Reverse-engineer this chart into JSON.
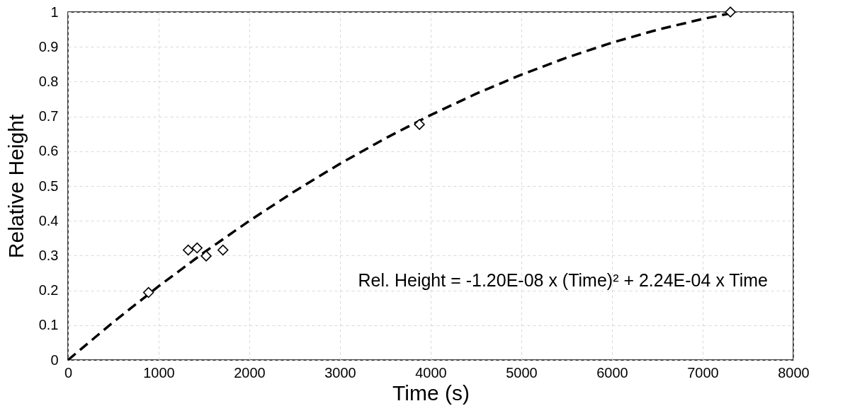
{
  "chart_data": {
    "type": "scatter",
    "xlabel": "Time (s)",
    "ylabel": "Relative Height",
    "annotations": [
      "Rel. Height = -1.20E-08 x (Time)² + 2.24E-04 x Time"
    ],
    "xlim": [
      0,
      8000
    ],
    "xticks": [
      0,
      1000,
      2000,
      3000,
      4000,
      5000,
      6000,
      7000,
      8000
    ],
    "ylim": [
      0,
      1
    ],
    "yticks": [
      0,
      0.1,
      0.2,
      0.3,
      0.4,
      0.5,
      0.6,
      0.7,
      0.8,
      0.9,
      1
    ],
    "grid": true,
    "series": [
      {
        "color": "#000000",
        "marker": "diamond",
        "x": [
          888,
          1326,
          1424,
          1524,
          1709,
          3876,
          7306
        ],
        "values": [
          0.194,
          0.316,
          0.322,
          0.299,
          0.316,
          0.677,
          1.0
        ]
      },
      {
        "type": "line",
        "color": "#000000",
        "marker": "none",
        "line_style": "dashed",
        "x": [
          0,
          500,
          1000,
          1500,
          2000,
          2500,
          3000,
          3500,
          4000,
          4500,
          5000,
          5500,
          6000,
          6500,
          7000,
          7300
        ],
        "values": [
          0,
          0.109,
          0.212,
          0.309,
          0.4,
          0.485,
          0.564,
          0.637,
          0.704,
          0.765,
          0.82,
          0.869,
          0.912,
          0.949,
          0.98,
          0.996
        ]
      }
    ]
  }
}
